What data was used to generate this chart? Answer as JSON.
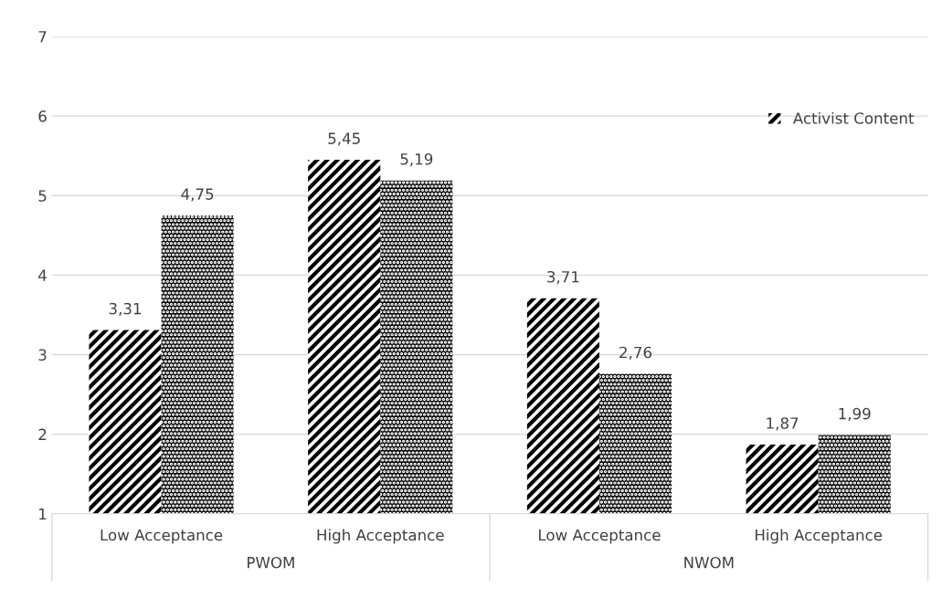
{
  "chart_data": {
    "type": "bar",
    "categories": [
      "Low Acceptance",
      "High Acceptance",
      "Low Acceptance",
      "High Acceptance"
    ],
    "series": [
      {
        "name": "Activist Content",
        "color": "#000000",
        "values": [
          3.31,
          5.45,
          3.71,
          1.87
        ],
        "value_labels": [
          "3,31",
          "5,45",
          "3,71",
          "1,87"
        ]
      },
      {
        "color": "#000000",
        "values": [
          4.75,
          5.19,
          2.76,
          1.99
        ],
        "value_labels": [
          "4,75",
          "5,19",
          "2,76",
          "1,99"
        ]
      }
    ],
    "annotations": [
      "PWOM",
      "NWOM"
    ],
    "ylim": [
      1,
      7
    ],
    "yticks": [
      1,
      2,
      3,
      4,
      5,
      6,
      7
    ],
    "grid": "y",
    "legend": "top right"
  }
}
